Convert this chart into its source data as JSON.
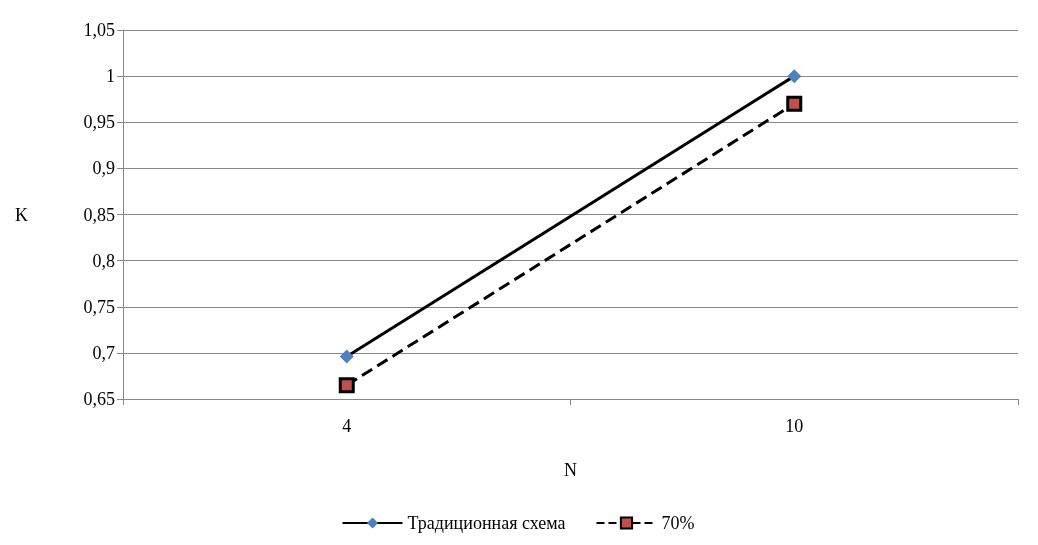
{
  "chart_data": {
    "type": "line",
    "xlabel": "N",
    "ylabel": "K",
    "categories": [
      "4",
      "10"
    ],
    "series": [
      {
        "name": "Традиционная схема",
        "color": "#000000",
        "colors": [
          "#4f81bd",
          "#4f81bd"
        ],
        "marker": "diamond",
        "line_style": "solid",
        "values": [
          0.696,
          1.0
        ]
      },
      {
        "name": "70%",
        "color": "#000000",
        "colors": [
          "#c0504d",
          "#c0504d"
        ],
        "marker": "square",
        "line_style": "dashed",
        "values": [
          0.665,
          0.97
        ]
      }
    ],
    "ylim": [
      0.65,
      1.05
    ],
    "yticks": [
      {
        "value": 0.65,
        "label": "0,65"
      },
      {
        "value": 0.7,
        "label": "0,7"
      },
      {
        "value": 0.75,
        "label": "0,75"
      },
      {
        "value": 0.8,
        "label": "0,8"
      },
      {
        "value": 0.85,
        "label": "0,85"
      },
      {
        "value": 0.9,
        "label": "0,9"
      },
      {
        "value": 0.95,
        "label": "0,95"
      },
      {
        "value": 1,
        "label": "1"
      },
      {
        "value": 1.05,
        "label": "1,05"
      }
    ],
    "grid": "y",
    "legend": "bottom"
  }
}
